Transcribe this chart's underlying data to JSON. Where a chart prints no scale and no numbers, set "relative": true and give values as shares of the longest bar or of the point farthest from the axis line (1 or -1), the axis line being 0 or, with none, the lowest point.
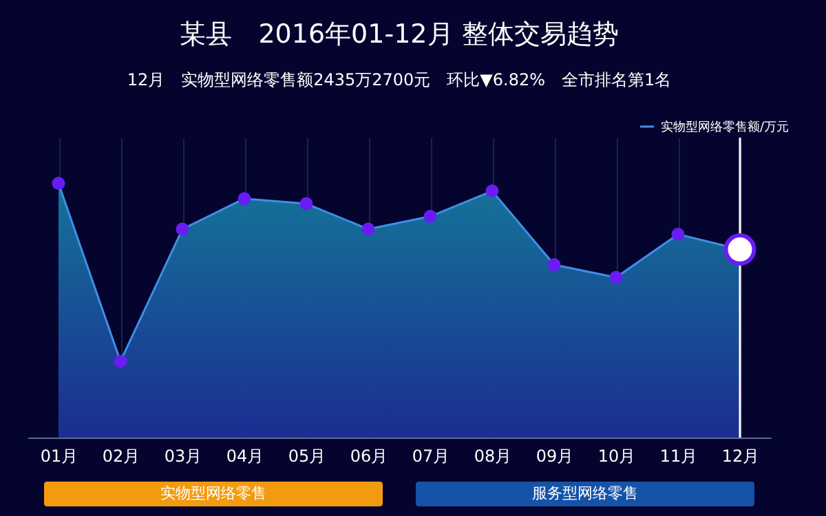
{
  "chart_data": {
    "type": "area",
    "relative": true,
    "title": "某县　2016年01-12月  整体交易趋势",
    "subtitle": "12月　实物型网络零售额2435万2700元　环比▼6.82%　全市排名第1名",
    "categories": [
      "01月",
      "02月",
      "03月",
      "04月",
      "05月",
      "06月",
      "07月",
      "08月",
      "09月",
      "10月",
      "11月",
      "12月"
    ],
    "series": [
      {
        "name": "实物型网络零售额/万元",
        "color": "#3f8fe6",
        "values": [
          1.0,
          0.3,
          0.82,
          0.94,
          0.92,
          0.82,
          0.87,
          0.97,
          0.68,
          0.63,
          0.8,
          0.74
        ]
      }
    ],
    "ref_lines": [
      {
        "axis": "x",
        "value": "12月",
        "color": "#ffffff"
      }
    ],
    "annotations": [
      "实物型网络零售",
      "服务型网络零售"
    ],
    "marker": "circle",
    "grid": "x",
    "legend": "top right"
  }
}
